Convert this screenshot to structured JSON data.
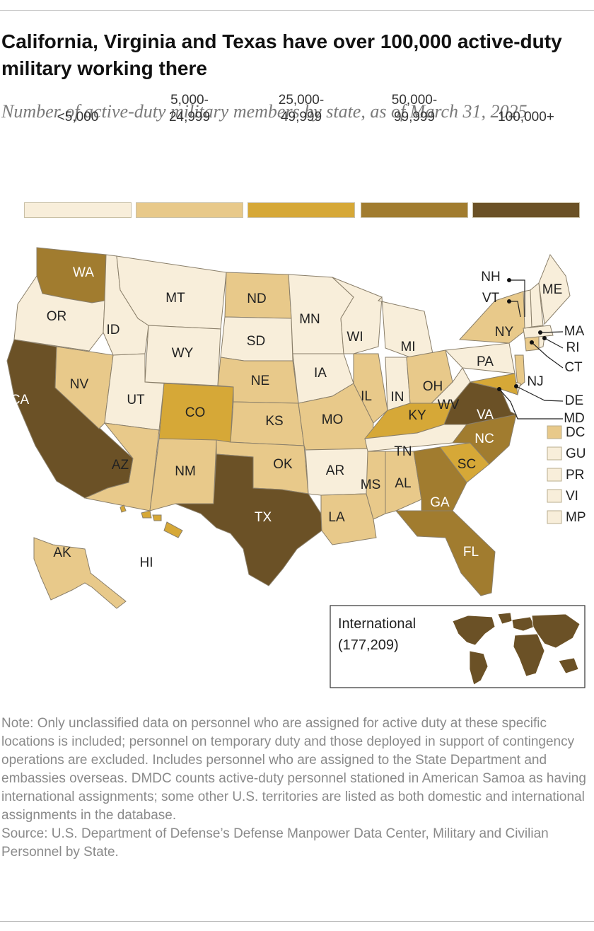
{
  "title": "California, Virginia and Texas have over 100,000 active-duty military working there",
  "subtitle": "Number of active-duty military members by state, as of March 31, 2025",
  "legend": [
    {
      "label": "<5,000",
      "color": "#f8eeda"
    },
    {
      "label": "5,000-\n24,999",
      "color": "#e8c98a"
    },
    {
      "label": "25,000-\n49,999",
      "color": "#d6a837"
    },
    {
      "label": "50,000-\n99,999",
      "color": "#a17c2f"
    },
    {
      "label": "100,000+",
      "color": "#6b5126"
    }
  ],
  "states": [
    {
      "abbr": "WA",
      "bin": 3
    },
    {
      "abbr": "OR",
      "bin": 0
    },
    {
      "abbr": "CA",
      "bin": 4
    },
    {
      "abbr": "NV",
      "bin": 1
    },
    {
      "abbr": "ID",
      "bin": 0
    },
    {
      "abbr": "MT",
      "bin": 0
    },
    {
      "abbr": "WY",
      "bin": 0
    },
    {
      "abbr": "UT",
      "bin": 0
    },
    {
      "abbr": "AZ",
      "bin": 1
    },
    {
      "abbr": "CO",
      "bin": 2
    },
    {
      "abbr": "NM",
      "bin": 1
    },
    {
      "abbr": "ND",
      "bin": 1
    },
    {
      "abbr": "SD",
      "bin": 0
    },
    {
      "abbr": "NE",
      "bin": 1
    },
    {
      "abbr": "KS",
      "bin": 1
    },
    {
      "abbr": "OK",
      "bin": 1
    },
    {
      "abbr": "TX",
      "bin": 4
    },
    {
      "abbr": "MN",
      "bin": 0
    },
    {
      "abbr": "IA",
      "bin": 0
    },
    {
      "abbr": "MO",
      "bin": 1
    },
    {
      "abbr": "AR",
      "bin": 0
    },
    {
      "abbr": "LA",
      "bin": 1
    },
    {
      "abbr": "WI",
      "bin": 0
    },
    {
      "abbr": "IL",
      "bin": 1
    },
    {
      "abbr": "MI",
      "bin": 0
    },
    {
      "abbr": "IN",
      "bin": 0
    },
    {
      "abbr": "OH",
      "bin": 1
    },
    {
      "abbr": "KY",
      "bin": 2
    },
    {
      "abbr": "TN",
      "bin": 0
    },
    {
      "abbr": "MS",
      "bin": 1
    },
    {
      "abbr": "AL",
      "bin": 1
    },
    {
      "abbr": "GA",
      "bin": 3
    },
    {
      "abbr": "FL",
      "bin": 3
    },
    {
      "abbr": "SC",
      "bin": 2
    },
    {
      "abbr": "NC",
      "bin": 3
    },
    {
      "abbr": "VA",
      "bin": 4
    },
    {
      "abbr": "WV",
      "bin": 0
    },
    {
      "abbr": "PA",
      "bin": 0
    },
    {
      "abbr": "NY",
      "bin": 1
    },
    {
      "abbr": "NJ",
      "bin": 1
    },
    {
      "abbr": "DE",
      "bin": 0
    },
    {
      "abbr": "MD",
      "bin": 2
    },
    {
      "abbr": "CT",
      "bin": 1
    },
    {
      "abbr": "RI",
      "bin": 0
    },
    {
      "abbr": "MA",
      "bin": 0
    },
    {
      "abbr": "VT",
      "bin": 0
    },
    {
      "abbr": "NH",
      "bin": 0
    },
    {
      "abbr": "ME",
      "bin": 0
    },
    {
      "abbr": "AK",
      "bin": 1
    },
    {
      "abbr": "HI",
      "bin": 2
    }
  ],
  "territories": [
    {
      "abbr": "DC",
      "bin": 1
    },
    {
      "abbr": "GU",
      "bin": 0
    },
    {
      "abbr": "PR",
      "bin": 0
    },
    {
      "abbr": "VI",
      "bin": 0
    },
    {
      "abbr": "MP",
      "bin": 0
    }
  ],
  "international": {
    "label": "International",
    "value": "(177,209)",
    "bin": 4
  },
  "note": "Note: Only unclassified data on personnel who are assigned for active duty at these specific locations is included; personnel on temporary duty and those deployed in support of contingency operations are excluded. Includes personnel who are assigned to the State Department and embassies overseas. DMDC counts active-duty personnel stationed in American Samoa as having international assignments; some other U.S. territories are listed as both domestic and international assignments in the database.",
  "source": "Source: U.S. Department of Defense’s Defense Manpower Data Center, Military and Civilian Personnel by State."
}
